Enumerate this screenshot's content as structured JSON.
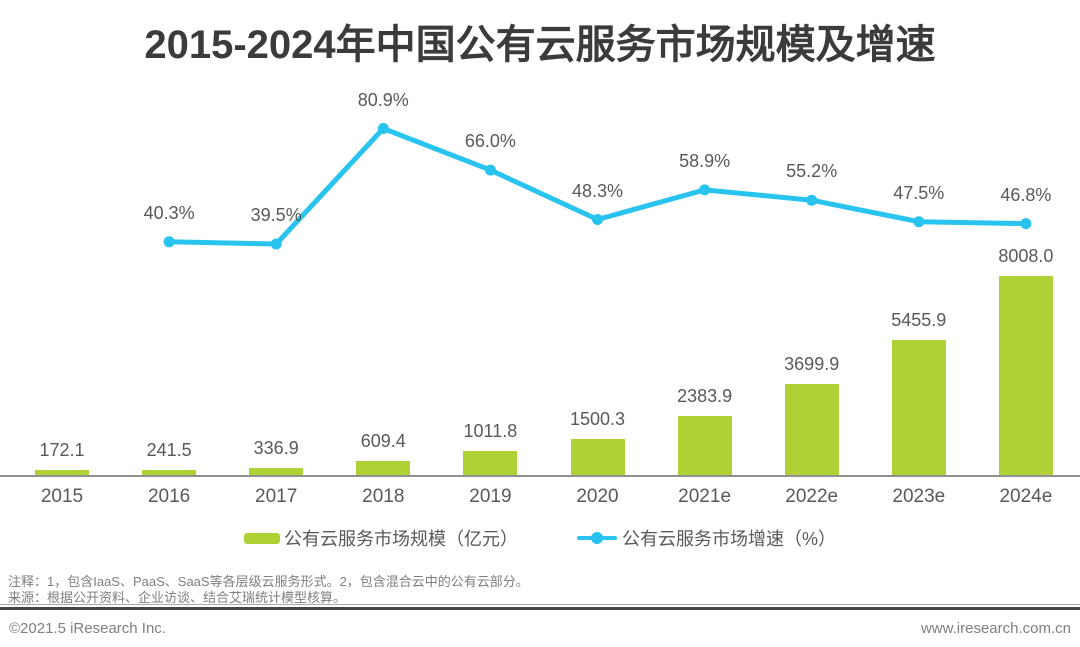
{
  "title": "2015-2024年中国公有云服务市场规模及增速",
  "colors": {
    "bar": "#AFD136",
    "line": "#29C3F0",
    "title_text": "#3B3B3B",
    "label_text": "#595959",
    "note_text": "#7F7F7F",
    "axis_line": "#909090"
  },
  "chart_data": {
    "type": "combo",
    "categories": [
      "2015",
      "2016",
      "2017",
      "2018",
      "2019",
      "2020",
      "2021e",
      "2022e",
      "2023e",
      "2024e"
    ],
    "series": [
      {
        "name": "公有云服务市场规模（亿元）",
        "type": "bar",
        "unit": "亿元",
        "values": [
          172.1,
          241.5,
          336.9,
          609.4,
          1011.8,
          1500.3,
          2383.9,
          3699.9,
          5455.9,
          8008.0
        ]
      },
      {
        "name": "公有云服务市场增速（%）",
        "type": "line",
        "unit": "%",
        "values": [
          null,
          40.3,
          39.5,
          80.9,
          66.0,
          48.3,
          58.9,
          55.2,
          47.5,
          46.8
        ]
      }
    ],
    "title": "2015-2024年中国公有云服务市场规模及增速",
    "xlabel": "",
    "ylabel": "",
    "grid": false,
    "value_labels": true,
    "legend_position": "bottom",
    "y_axis_visible": false
  },
  "legend": {
    "bar_label": "公有云服务市场规模（亿元）",
    "line_label": "公有云服务市场增速（%）"
  },
  "notes": {
    "line1": "注释：1，包含IaaS、PaaS、SaaS等各层级云服务形式。2，包含混合云中的公有云部分。",
    "line2": "来源：根据公开资料、企业访谈、结合艾瑞统计模型核算。"
  },
  "footer": {
    "left": "©2021.5 iResearch Inc.",
    "right": "www.iresearch.com.cn"
  }
}
